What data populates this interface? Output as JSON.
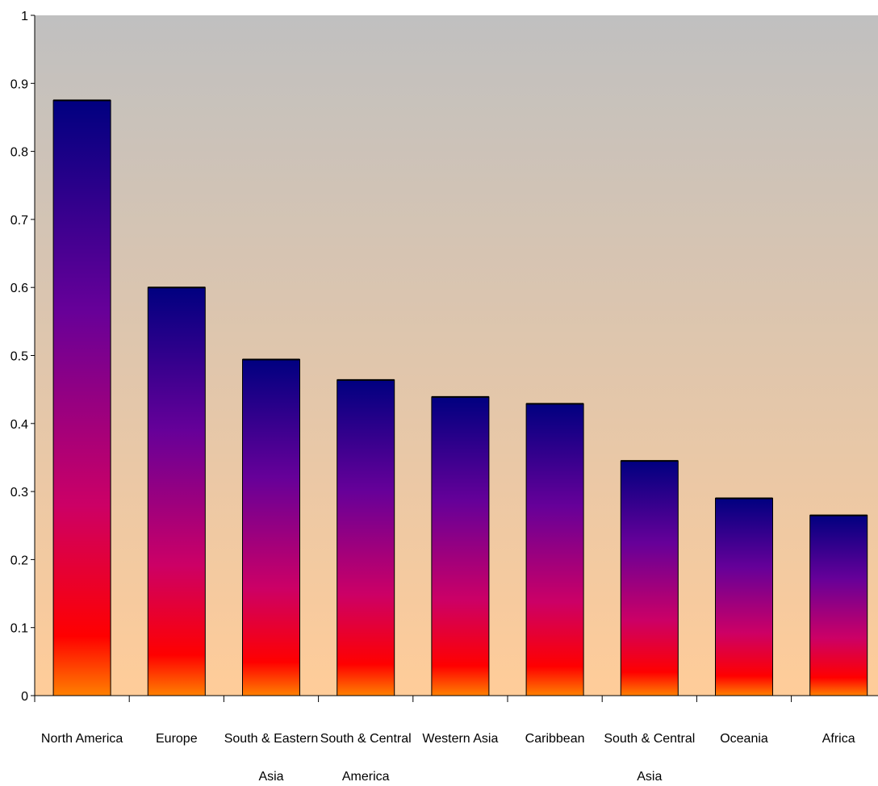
{
  "chart_data": {
    "type": "bar",
    "title": "",
    "xlabel": "",
    "ylabel": "",
    "ylim": [
      0,
      1
    ],
    "yticks": [
      0,
      0.1,
      0.2,
      0.3,
      0.4,
      0.5,
      0.6,
      0.7,
      0.8,
      0.9,
      1
    ],
    "ytick_labels": [
      "0",
      "0.1",
      "0.2",
      "0.3",
      "0.4",
      "0.5",
      "0.6",
      "0.7",
      "0.8",
      "0.9",
      "1"
    ],
    "categories": [
      [
        "North America"
      ],
      [
        "Europe"
      ],
      [
        "South & Eastern",
        "Asia"
      ],
      [
        "South & Central",
        "America"
      ],
      [
        "Western Asia"
      ],
      [
        "Caribbean"
      ],
      [
        "South & Central",
        "Asia"
      ],
      [
        "Oceania"
      ],
      [
        "Africa"
      ]
    ],
    "values": [
      0.875,
      0.6,
      0.494,
      0.464,
      0.439,
      0.429,
      0.345,
      0.29,
      0.265
    ],
    "grid": false,
    "legend": "none",
    "colors": {
      "plot_bg_top": "#c0c0c0",
      "plot_bg_bottom": "#ffcc99",
      "bar_top": "#000080",
      "bar_mid": "#660099",
      "bar_low": "#cc0066",
      "bar_red": "#ff0000",
      "bar_bottom": "#ff8000"
    }
  }
}
